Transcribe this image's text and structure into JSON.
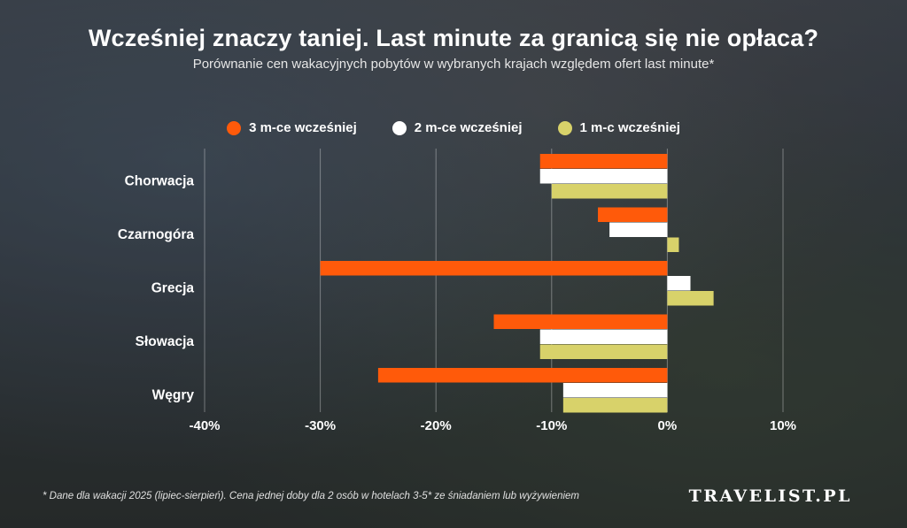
{
  "title": "Wcześniej znaczy taniej. Last minute za granicą się nie opłaca?",
  "subtitle": "Porównanie cen wakacyjnych pobytów w wybranych krajach względem ofert last minute*",
  "footnote": "* Dane dla wakacji 2025 (lipiec-sierpień). Cena jednej doby dla 2 osób w hotelach 3-5* ze śniadaniem lub wyżywieniem",
  "brand": "TRAVELIST.PL",
  "colors": {
    "series1": "#ff5a0a",
    "series2": "#ffffff",
    "series3": "#d8d26a",
    "gridline": "rgba(255,255,255,0.35)"
  },
  "chart_data": {
    "type": "bar",
    "orientation": "horizontal",
    "categories": [
      "Chorwacja",
      "Czarnogóra",
      "Grecja",
      "Słowacja",
      "Węgry"
    ],
    "series": [
      {
        "name": "3 m-ce wcześniej",
        "values": [
          -11,
          -6,
          -30,
          -15,
          -25
        ]
      },
      {
        "name": "2 m-ce wcześniej",
        "values": [
          -11,
          -5,
          2,
          -11,
          -9
        ]
      },
      {
        "name": "1 m-c wcześniej",
        "values": [
          -10,
          1,
          4,
          -11,
          -9
        ]
      }
    ],
    "x_ticks": [
      "-40%",
      "-30%",
      "-20%",
      "-10%",
      "0%",
      "10%"
    ],
    "xlim": [
      -40,
      10
    ],
    "legend": "top-center",
    "grid": "vertical"
  }
}
